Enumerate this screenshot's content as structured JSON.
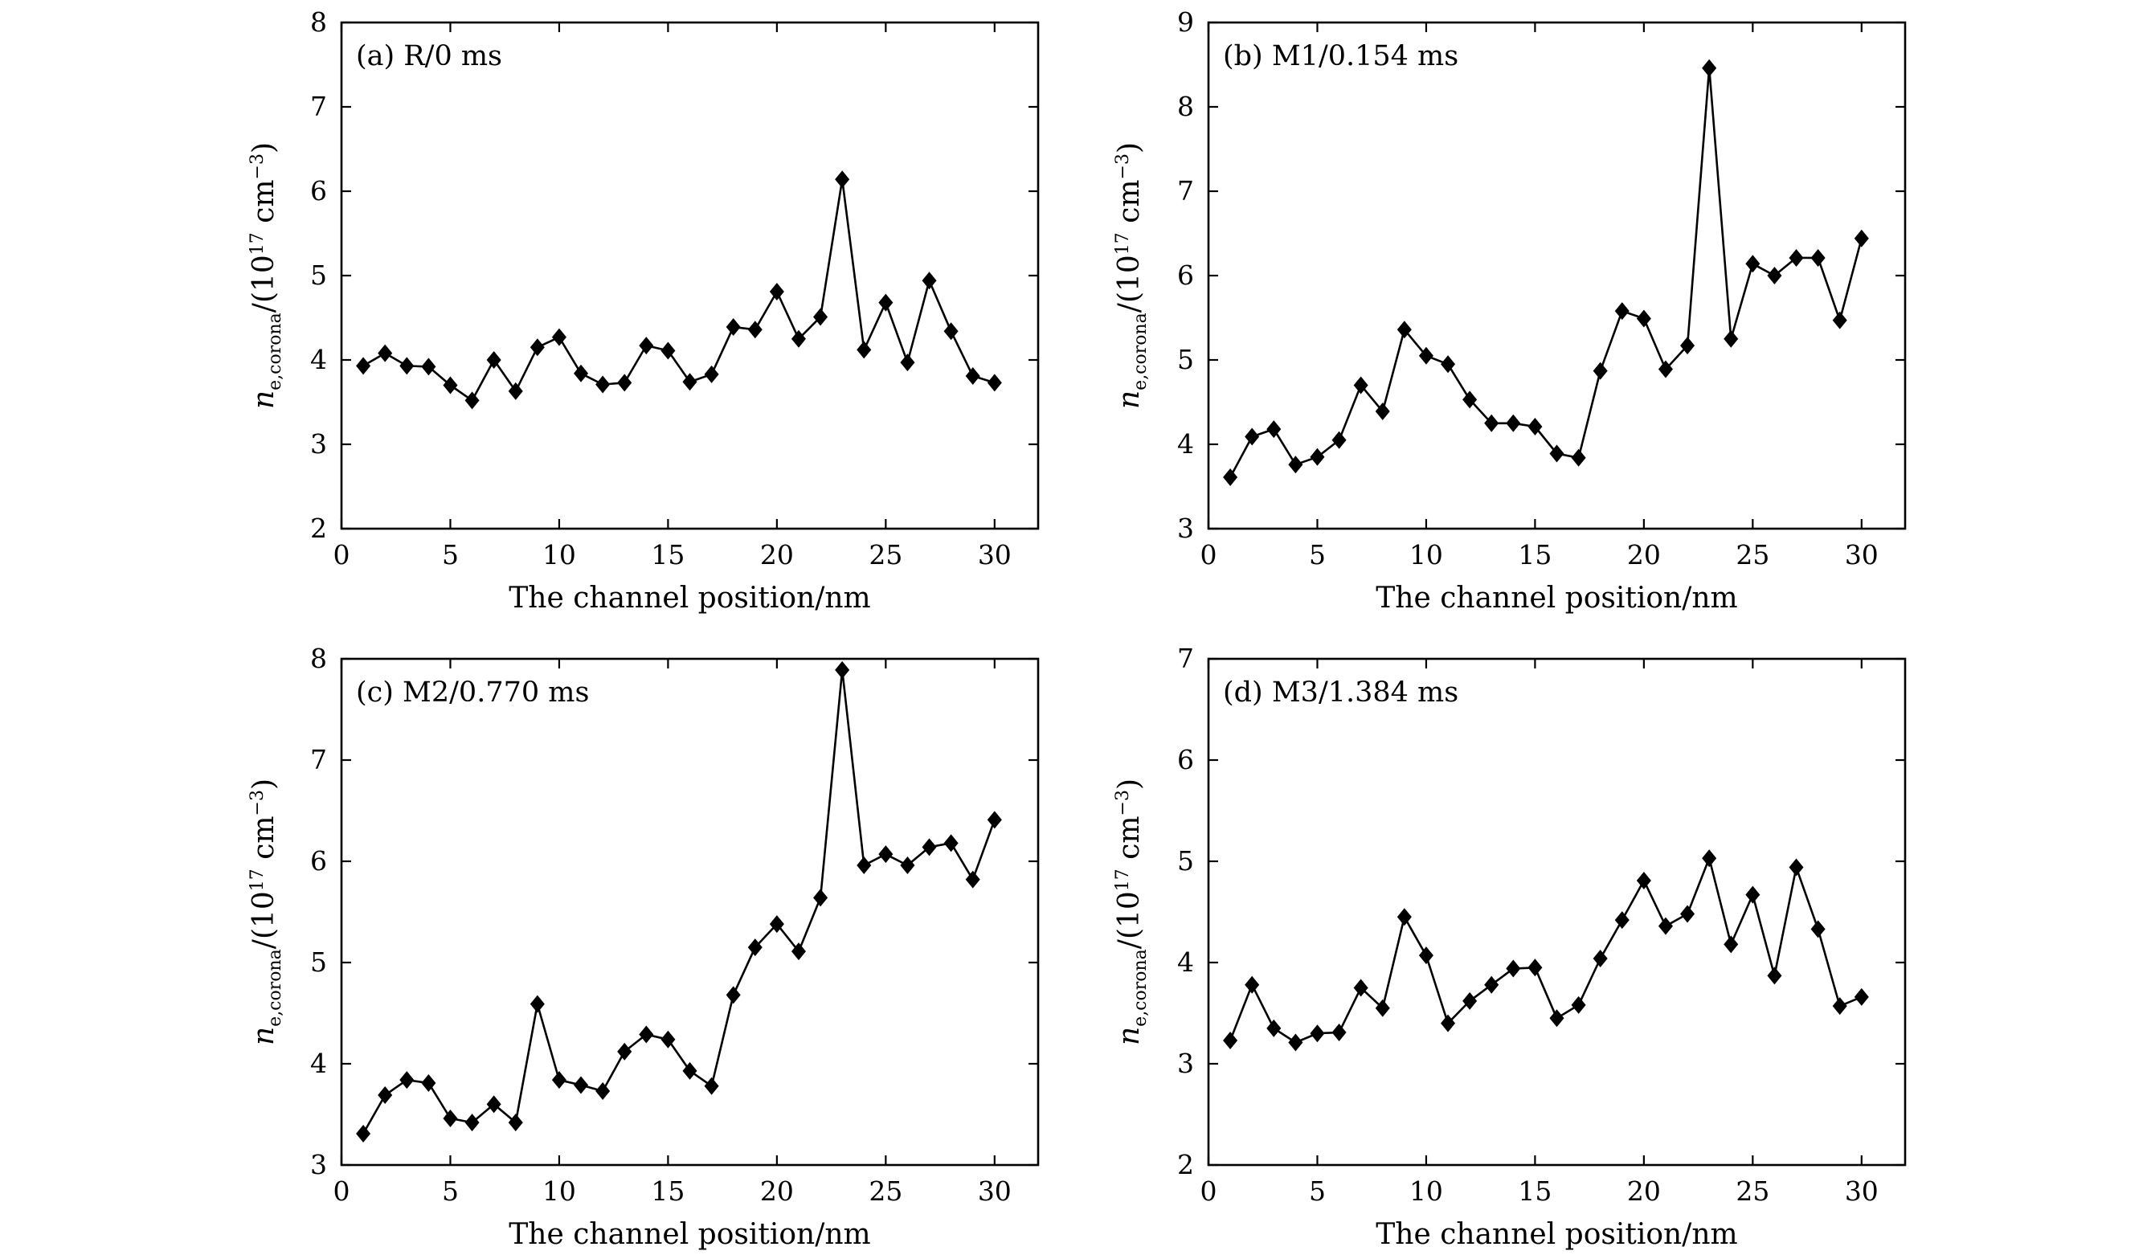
{
  "chart_data": [
    {
      "type": "line",
      "panel_label": "(a) R/0 ms",
      "xlabel": "The channel position/nm",
      "ylabel": {
        "var": "n",
        "sub": "e,corona",
        "slash": "/(10",
        "sup1": "17",
        "unit": " cm",
        "sup2": "−3",
        "close": ")"
      },
      "xlim": [
        0,
        32
      ],
      "ylim": [
        2,
        8
      ],
      "xticks": [
        0,
        5,
        10,
        15,
        20,
        25,
        30
      ],
      "yticks": [
        2,
        3,
        4,
        5,
        6,
        7,
        8
      ],
      "grid": false,
      "x": [
        1,
        2,
        3,
        4,
        5,
        6,
        7,
        8,
        9,
        10,
        11,
        12,
        13,
        14,
        15,
        16,
        17,
        18,
        19,
        20,
        21,
        22,
        23,
        24,
        25,
        26,
        27,
        28,
        29,
        30
      ],
      "y": [
        3.93,
        4.08,
        3.93,
        3.92,
        3.7,
        3.52,
        4.0,
        3.63,
        4.15,
        4.27,
        3.84,
        3.71,
        3.73,
        4.17,
        4.11,
        3.74,
        3.83,
        4.39,
        4.36,
        4.81,
        4.25,
        4.51,
        6.14,
        4.12,
        4.68,
        3.97,
        4.94,
        4.34,
        3.81,
        3.73
      ]
    },
    {
      "type": "line",
      "panel_label": "(b) M1/0.154 ms",
      "xlabel": "The channel position/nm",
      "ylabel": {
        "var": "n",
        "sub": "e,corona",
        "slash": "/(10",
        "sup1": "17",
        "unit": " cm",
        "sup2": "−3",
        "close": ")"
      },
      "xlim": [
        0,
        32
      ],
      "ylim": [
        3,
        9
      ],
      "xticks": [
        0,
        5,
        10,
        15,
        20,
        25,
        30
      ],
      "yticks": [
        3,
        4,
        5,
        6,
        7,
        8,
        9
      ],
      "grid": false,
      "x": [
        1,
        2,
        3,
        4,
        5,
        6,
        7,
        8,
        9,
        10,
        11,
        12,
        13,
        14,
        15,
        16,
        17,
        18,
        19,
        20,
        21,
        22,
        23,
        24,
        25,
        26,
        27,
        28,
        29,
        30
      ],
      "y": [
        3.61,
        4.09,
        4.18,
        3.76,
        3.85,
        4.05,
        4.7,
        4.39,
        5.36,
        5.05,
        4.95,
        4.53,
        4.25,
        4.25,
        4.21,
        3.89,
        3.84,
        4.87,
        5.58,
        5.49,
        4.89,
        5.17,
        8.46,
        5.25,
        6.14,
        6.0,
        6.21,
        6.21,
        5.47,
        6.44
      ]
    },
    {
      "type": "line",
      "panel_label": "(c) M2/0.770 ms",
      "xlabel": "The channel position/nm",
      "ylabel": {
        "var": "n",
        "sub": "e,corona",
        "slash": "/(10",
        "sup1": "17",
        "unit": " cm",
        "sup2": "−3",
        "close": ")"
      },
      "xlim": [
        0,
        32
      ],
      "ylim": [
        3,
        8
      ],
      "xticks": [
        0,
        5,
        10,
        15,
        20,
        25,
        30
      ],
      "yticks": [
        3,
        4,
        5,
        6,
        7,
        8
      ],
      "grid": false,
      "x": [
        1,
        2,
        3,
        4,
        5,
        6,
        7,
        8,
        9,
        10,
        11,
        12,
        13,
        14,
        15,
        16,
        17,
        18,
        19,
        20,
        21,
        22,
        23,
        24,
        25,
        26,
        27,
        28,
        29,
        30
      ],
      "y": [
        3.31,
        3.69,
        3.84,
        3.81,
        3.46,
        3.42,
        3.6,
        3.42,
        4.59,
        3.84,
        3.79,
        3.73,
        4.12,
        4.29,
        4.24,
        3.93,
        3.78,
        4.68,
        5.15,
        5.38,
        5.11,
        5.64,
        7.89,
        5.96,
        6.07,
        5.96,
        6.14,
        6.18,
        5.82,
        6.41
      ]
    },
    {
      "type": "line",
      "panel_label": "(d) M3/1.384 ms",
      "xlabel": "The channel position/nm",
      "ylabel": {
        "var": "n",
        "sub": "e,corona",
        "slash": "/(10",
        "sup1": "17",
        "unit": " cm",
        "sup2": "−3",
        "close": ")"
      },
      "xlim": [
        0,
        32
      ],
      "ylim": [
        2,
        7
      ],
      "xticks": [
        0,
        5,
        10,
        15,
        20,
        25,
        30
      ],
      "yticks": [
        2,
        3,
        4,
        5,
        6,
        7
      ],
      "grid": false,
      "x": [
        1,
        2,
        3,
        4,
        5,
        6,
        7,
        8,
        9,
        10,
        11,
        12,
        13,
        14,
        15,
        16,
        17,
        18,
        19,
        20,
        21,
        22,
        23,
        24,
        25,
        26,
        27,
        28,
        29,
        30
      ],
      "y": [
        3.23,
        3.78,
        3.35,
        3.21,
        3.3,
        3.31,
        3.75,
        3.55,
        4.45,
        4.07,
        3.4,
        3.62,
        3.78,
        3.94,
        3.95,
        3.45,
        3.58,
        4.04,
        4.42,
        4.81,
        4.36,
        4.48,
        5.03,
        4.18,
        4.67,
        3.87,
        4.94,
        4.33,
        3.57,
        3.66
      ]
    }
  ]
}
